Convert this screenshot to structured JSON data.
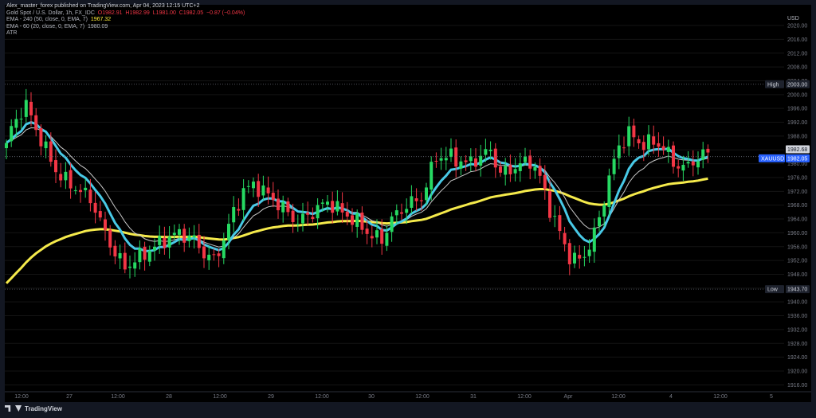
{
  "header": {
    "publisher": "Alex_master_forex published on TradingView.com, Apr 04, 2023 12:15 UTC+2",
    "symbol": "Gold Spot / U.S. Dollar, 1h, FX_IDC",
    "ohlc_o": "O1982.91",
    "ohlc_h": "H1982.99",
    "ohlc_l": "L1981.00",
    "ohlc_c": "C1982.05",
    "ohlc_chg": "−0.87 (−0.04%)",
    "ema240_label": "EMA - 240 (50, close, 0, EMA, 7)",
    "ema240_value": "1967.32",
    "ema60_label": "EMA - 60 (20, close, 0, EMA, 7)",
    "ema60_value": "1980.09",
    "atr_label": "ATR"
  },
  "footer": {
    "brand": "TradingView"
  },
  "colors": {
    "up": "#26d962",
    "down": "#f23645",
    "ema240": "#f5ea4b",
    "ema60": "#48c9e6",
    "extra_line": "#c9c9c9",
    "price_tag": "#2962ff"
  },
  "chart_data": {
    "type": "candlestick",
    "currency": "USD",
    "ylim": [
      1914,
      2026
    ],
    "y_ticks": [
      2020,
      2016,
      2012,
      2008,
      2004,
      2000,
      1996,
      1992,
      1988,
      1984,
      1980,
      1976,
      1972,
      1968,
      1964,
      1960,
      1956,
      1952,
      1948,
      1944,
      1940,
      1936,
      1932,
      1928,
      1924,
      1920,
      1916
    ],
    "x_ticks": [
      "12:00",
      "27",
      "12:00",
      "28",
      "12:00",
      "29",
      "12:00",
      "30",
      "12:00",
      "31",
      "12:00",
      "Apr",
      "12:00",
      "4",
      "12:00",
      "5"
    ],
    "high_label": "High",
    "high_value": 2003.0,
    "low_label": "Low",
    "low_value": 1943.7,
    "current_label": "XAUUSD",
    "current_value": 1982.05,
    "last_value": 1982.68,
    "anchors": [
      {
        "t": 0,
        "p": 1986
      },
      {
        "t": 2,
        "p": 1993
      },
      {
        "t": 4,
        "p": 1997
      },
      {
        "t": 6,
        "p": 1990
      },
      {
        "t": 8,
        "p": 1984
      },
      {
        "t": 10,
        "p": 1978
      },
      {
        "t": 12,
        "p": 1975
      },
      {
        "t": 14,
        "p": 1973
      },
      {
        "t": 17,
        "p": 1970
      },
      {
        "t": 20,
        "p": 1960
      },
      {
        "t": 22,
        "p": 1954
      },
      {
        "t": 24,
        "p": 1950
      },
      {
        "t": 26,
        "p": 1952
      },
      {
        "t": 29,
        "p": 1955
      },
      {
        "t": 32,
        "p": 1958
      },
      {
        "t": 35,
        "p": 1960
      },
      {
        "t": 38,
        "p": 1958
      },
      {
        "t": 40,
        "p": 1954
      },
      {
        "t": 42,
        "p": 1952
      },
      {
        "t": 44,
        "p": 1958
      },
      {
        "t": 46,
        "p": 1966
      },
      {
        "t": 48,
        "p": 1972
      },
      {
        "t": 50,
        "p": 1974
      },
      {
        "t": 53,
        "p": 1971
      },
      {
        "t": 56,
        "p": 1967
      },
      {
        "t": 59,
        "p": 1963
      },
      {
        "t": 62,
        "p": 1966
      },
      {
        "t": 65,
        "p": 1969
      },
      {
        "t": 68,
        "p": 1966
      },
      {
        "t": 71,
        "p": 1963
      },
      {
        "t": 74,
        "p": 1959
      },
      {
        "t": 76,
        "p": 1958
      },
      {
        "t": 78,
        "p": 1964
      },
      {
        "t": 81,
        "p": 1968
      },
      {
        "t": 84,
        "p": 1970
      },
      {
        "t": 87,
        "p": 1982
      },
      {
        "t": 90,
        "p": 1982
      },
      {
        "t": 93,
        "p": 1980
      },
      {
        "t": 96,
        "p": 1982
      },
      {
        "t": 98,
        "p": 1984
      },
      {
        "t": 100,
        "p": 1977
      },
      {
        "t": 103,
        "p": 1979
      },
      {
        "t": 106,
        "p": 1981
      },
      {
        "t": 108,
        "p": 1976
      },
      {
        "t": 110,
        "p": 1967
      },
      {
        "t": 112,
        "p": 1960
      },
      {
        "t": 114,
        "p": 1953
      },
      {
        "t": 116,
        "p": 1952
      },
      {
        "t": 118,
        "p": 1956
      },
      {
        "t": 120,
        "p": 1964
      },
      {
        "t": 122,
        "p": 1976
      },
      {
        "t": 124,
        "p": 1985
      },
      {
        "t": 126,
        "p": 1989
      },
      {
        "t": 128,
        "p": 1986
      },
      {
        "t": 131,
        "p": 1986
      },
      {
        "t": 133,
        "p": 1985
      },
      {
        "t": 135,
        "p": 1980
      },
      {
        "t": 138,
        "p": 1979
      },
      {
        "t": 140,
        "p": 1982
      },
      {
        "t": 142,
        "p": 1983
      }
    ]
  }
}
